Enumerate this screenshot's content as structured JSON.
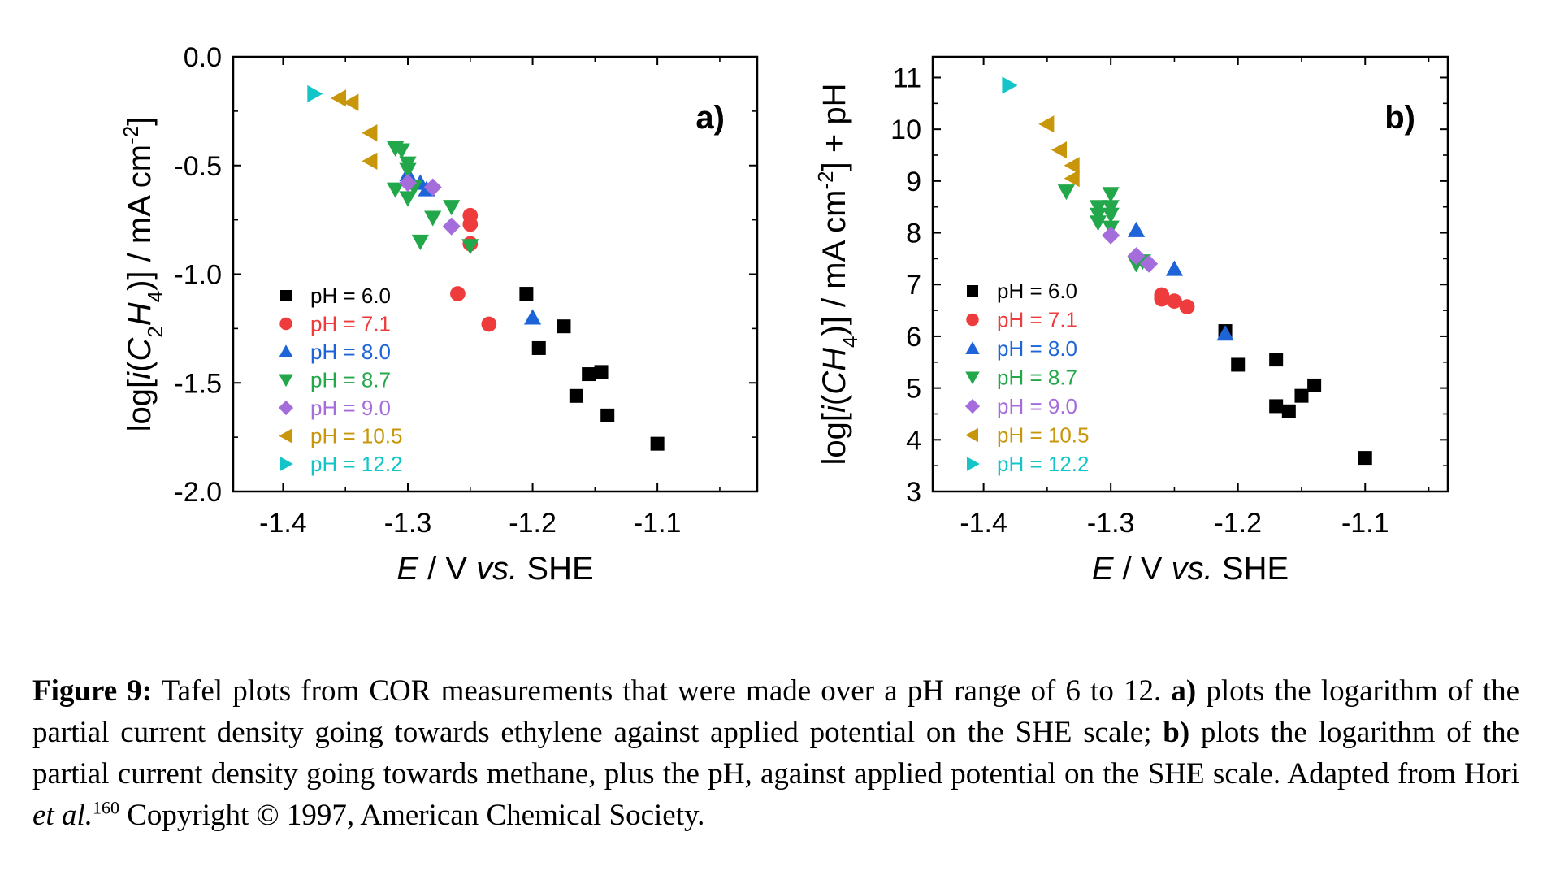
{
  "chart_data": [
    {
      "type": "scatter",
      "panel_label": "a)",
      "ylabel_parts": [
        "log[",
        "i",
        "(",
        "C",
        "2",
        "H",
        "4",
        ")] / mA cm",
        "-2",
        "]"
      ],
      "xlabel_parts": [
        "E",
        " / V ",
        "vs.",
        " SHE"
      ],
      "xlim": [
        -1.44,
        -1.02
      ],
      "ylim": [
        -2.0,
        0.0
      ],
      "xticks": [
        -1.4,
        -1.3,
        -1.2,
        -1.1
      ],
      "xtick_labels": [
        "-1.4",
        "-1.3",
        "-1.2",
        "-1.1"
      ],
      "yticks": [
        -2.0,
        -1.5,
        -1.0,
        -0.5,
        0.0
      ],
      "ytick_labels": [
        "-2.0",
        "-1.5",
        "-1.0",
        "-0.5",
        "0.0"
      ],
      "legend_position": "lower-left",
      "series": [
        {
          "name": "pH = 6.0",
          "color": "#000000",
          "marker": "square",
          "x": [
            -1.205,
            -1.195,
            -1.175,
            -1.165,
            -1.155,
            -1.145,
            -1.14,
            -1.1
          ],
          "y": [
            -1.09,
            -1.34,
            -1.24,
            -1.56,
            -1.46,
            -1.45,
            -1.65,
            -1.78
          ]
        },
        {
          "name": "pH = 7.1",
          "color": "#ee3b3b",
          "marker": "circle",
          "x": [
            -1.25,
            -1.25,
            -1.25,
            -1.26,
            -1.235
          ],
          "y": [
            -0.73,
            -0.77,
            -0.86,
            -1.09,
            -1.23
          ]
        },
        {
          "name": "pH = 8.0",
          "color": "#1c64d8",
          "marker": "triangle-up",
          "x": [
            -1.3,
            -1.29,
            -1.285,
            -1.2
          ],
          "y": [
            -0.54,
            -0.58,
            -0.61,
            -1.2
          ]
        },
        {
          "name": "pH = 8.7",
          "color": "#22a84a",
          "marker": "triangle-down",
          "x": [
            -1.31,
            -1.305,
            -1.3,
            -1.3,
            -1.31,
            -1.295,
            -1.3,
            -1.265,
            -1.28,
            -1.25,
            -1.29
          ],
          "y": [
            -0.42,
            -0.43,
            -0.49,
            -0.52,
            -0.61,
            -0.6,
            -0.65,
            -0.69,
            -0.74,
            -0.87,
            -0.85
          ]
        },
        {
          "name": "pH = 9.0",
          "color": "#a56ddb",
          "marker": "diamond",
          "x": [
            -1.3,
            -1.28,
            -1.265
          ],
          "y": [
            -0.58,
            -0.6,
            -0.78
          ]
        },
        {
          "name": "pH = 10.5",
          "color": "#c8960a",
          "marker": "triangle-left",
          "x": [
            -1.355,
            -1.345,
            -1.33,
            -1.33
          ],
          "y": [
            -0.19,
            -0.21,
            -0.35,
            -0.48
          ]
        },
        {
          "name": "pH = 12.2",
          "color": "#13c5c9",
          "marker": "triangle-right",
          "x": [
            -1.375
          ],
          "y": [
            -0.17
          ]
        }
      ]
    },
    {
      "type": "scatter",
      "panel_label": "b)",
      "ylabel_parts": [
        "log[",
        "i",
        "(",
        "CH",
        "4",
        ")] / mA cm",
        "-2",
        "] + pH"
      ],
      "xlabel_parts": [
        "E",
        " / V ",
        "vs.",
        " SHE"
      ],
      "xlim": [
        -1.44,
        -1.035
      ],
      "ylim": [
        3,
        11.4
      ],
      "xticks": [
        -1.4,
        -1.3,
        -1.2,
        -1.1
      ],
      "xtick_labels": [
        "-1.4",
        "-1.3",
        "-1.2",
        "-1.1"
      ],
      "yticks": [
        3,
        4,
        5,
        6,
        7,
        8,
        9,
        10,
        11
      ],
      "ytick_labels": [
        "3",
        "4",
        "5",
        "6",
        "7",
        "8",
        "9",
        "10",
        "11"
      ],
      "legend_position": "lower-left",
      "series": [
        {
          "name": "pH = 6.0",
          "color": "#000000",
          "marker": "square",
          "x": [
            -1.21,
            -1.2,
            -1.17,
            -1.17,
            -1.16,
            -1.15,
            -1.14,
            -1.1
          ],
          "y": [
            6.1,
            5.45,
            5.55,
            4.65,
            4.55,
            4.85,
            5.05,
            3.65
          ]
        },
        {
          "name": "pH = 7.1",
          "color": "#ee3b3b",
          "marker": "circle",
          "x": [
            -1.26,
            -1.26,
            -1.25,
            -1.24
          ],
          "y": [
            6.8,
            6.72,
            6.68,
            6.57
          ]
        },
        {
          "name": "pH = 8.0",
          "color": "#1c64d8",
          "marker": "triangle-up",
          "x": [
            -1.28,
            -1.25,
            -1.21
          ],
          "y": [
            8.05,
            7.3,
            6.05
          ]
        },
        {
          "name": "pH = 8.7",
          "color": "#22a84a",
          "marker": "triangle-down",
          "x": [
            -1.335,
            -1.31,
            -1.31,
            -1.31,
            -1.3,
            -1.3,
            -1.3,
            -1.3,
            -1.28,
            -1.275
          ],
          "y": [
            8.8,
            8.5,
            8.35,
            8.2,
            8.75,
            8.5,
            8.35,
            8.1,
            7.4,
            7.45
          ]
        },
        {
          "name": "pH = 9.0",
          "color": "#a56ddb",
          "marker": "diamond",
          "x": [
            -1.3,
            -1.28,
            -1.27
          ],
          "y": [
            7.95,
            7.55,
            7.4
          ]
        },
        {
          "name": "pH = 10.5",
          "color": "#c8960a",
          "marker": "triangle-left",
          "x": [
            -1.35,
            -1.34,
            -1.33,
            -1.33
          ],
          "y": [
            10.1,
            9.6,
            9.3,
            9.05
          ]
        },
        {
          "name": "pH = 12.2",
          "color": "#13c5c9",
          "marker": "triangle-right",
          "x": [
            -1.38
          ],
          "y": [
            10.85
          ]
        }
      ]
    }
  ],
  "caption": {
    "figure_label": "Figure 9:",
    "text1": " Tafel plots from COR measurements that were made over a pH range of 6 to 12. ",
    "a_label": "a)",
    "text2": " plots the logarithm of the partial current density going towards ethylene against applied potential on the SHE scale; ",
    "b_label": "b)",
    "text3": " plots the logarithm of the partial current density going towards methane, plus the pH, against applied potential on the SHE scale. Adapted from Hori ",
    "etal": "et al.",
    "ref_number": "160",
    "text4": " Copyright © 1997, American Chemical Society."
  }
}
